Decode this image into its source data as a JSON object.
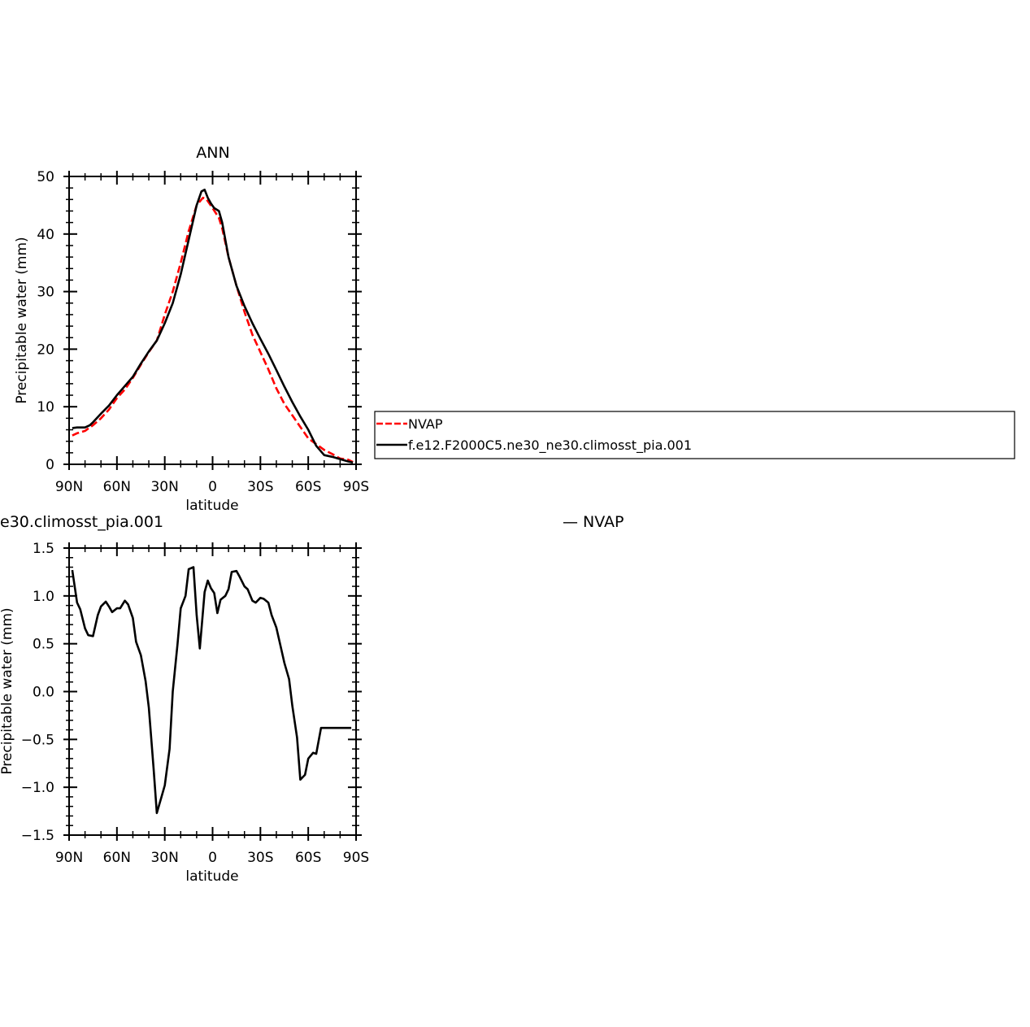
{
  "chart_data": [
    {
      "type": "line",
      "title": "ANN",
      "xlabel": "latitude",
      "ylabel": "Precipitable water (mm)",
      "xlim": [
        90,
        -90
      ],
      "ylim": [
        0,
        50
      ],
      "xticks": [
        90,
        60,
        30,
        0,
        -30,
        -60,
        -90
      ],
      "xticklabels": [
        "90N",
        "60N",
        "30N",
        "0",
        "30S",
        "60S",
        "90S"
      ],
      "yticks": [
        0,
        10,
        20,
        30,
        40,
        50
      ],
      "yticklabels": [
        "0",
        "10",
        "20",
        "30",
        "40",
        "50"
      ],
      "grid": false,
      "legend": {
        "placement": "right",
        "entries": [
          "NVAP",
          "f.e12.F2000C5.ne30_ne30.climosst_pia.001"
        ]
      },
      "series": [
        {
          "name": "NVAP",
          "color": "#ff0000",
          "dash": "dashed",
          "x": [
            88,
            85,
            80,
            75,
            70,
            65,
            60,
            55,
            50,
            45,
            40,
            35,
            30,
            25,
            20,
            15,
            10,
            6,
            4,
            2,
            0,
            -4,
            -6,
            -10,
            -15,
            -20,
            -25,
            -30,
            -35,
            -40,
            -45,
            -50,
            -55,
            -60,
            -65,
            -70,
            -75,
            -80,
            -85,
            -88
          ],
          "y": [
            5.0,
            5.4,
            5.8,
            6.8,
            8.0,
            9.5,
            11.5,
            13.0,
            15.0,
            17.3,
            19.5,
            21.5,
            26.0,
            30.0,
            35.0,
            40.5,
            45.0,
            46.3,
            46.1,
            45.3,
            44.5,
            42.8,
            41.0,
            36.0,
            31.0,
            26.5,
            22.5,
            19.5,
            16.5,
            13.2,
            10.5,
            8.5,
            6.5,
            4.5,
            3.5,
            2.5,
            1.8,
            1.0,
            0.8,
            0.4
          ]
        },
        {
          "name": "f.e12.F2000C5.ne30_ne30.climosst_pia.001",
          "color": "#000000",
          "dash": "solid",
          "x": [
            88,
            85,
            80,
            77,
            75,
            70,
            65,
            60,
            55,
            50,
            45,
            40,
            35,
            30,
            25,
            20,
            15,
            10,
            7,
            5,
            3,
            1,
            -1,
            -4,
            -6,
            -10,
            -15,
            -20,
            -25,
            -30,
            -35,
            -40,
            -45,
            -50,
            -55,
            -60,
            -65,
            -70,
            -75,
            -80,
            -85,
            -88
          ],
          "y": [
            6.3,
            6.4,
            6.4,
            6.8,
            7.3,
            8.8,
            10.2,
            12.0,
            13.6,
            15.2,
            17.5,
            19.6,
            21.5,
            24.5,
            28.0,
            33.0,
            39.0,
            45.0,
            47.4,
            47.7,
            46.3,
            45.3,
            44.5,
            44.0,
            42.0,
            36.0,
            31.0,
            27.5,
            24.5,
            21.8,
            19.2,
            16.4,
            13.5,
            10.8,
            8.3,
            6.0,
            3.2,
            1.6,
            1.3,
            0.9,
            0.5,
            0.3
          ]
        }
      ]
    },
    {
      "type": "line",
      "title": "e30.climosst_pia.001",
      "right_title": "— NVAP",
      "xlabel": "latitude",
      "ylabel": "Precipitable water (mm)",
      "xlim": [
        90,
        -90
      ],
      "ylim": [
        -1.5,
        1.5
      ],
      "xticks": [
        90,
        60,
        30,
        0,
        -30,
        -60,
        -90
      ],
      "xticklabels": [
        "90N",
        "60N",
        "30N",
        "0",
        "30S",
        "60S",
        "90S"
      ],
      "yticks": [
        -1.5,
        -1.0,
        -0.5,
        0.0,
        0.5,
        1.0,
        1.5
      ],
      "yticklabels": [
        "−1.5",
        "−1.0",
        "−0.5",
        "0.0",
        "0.5",
        "1.0",
        "1.5"
      ],
      "grid": false,
      "series": [
        {
          "color": "#000000",
          "dash": "solid",
          "x": [
            88,
            85,
            83,
            80,
            78,
            75,
            72,
            70,
            67,
            65,
            63,
            60,
            58,
            55,
            53,
            50,
            48,
            45,
            42,
            40,
            37,
            35,
            32,
            30,
            27,
            25,
            22,
            20,
            17,
            15,
            12,
            10,
            8,
            5,
            3,
            1,
            -1,
            -3,
            -5,
            -8,
            -10,
            -12,
            -15,
            -17,
            -20,
            -22,
            -25,
            -27,
            -30,
            -32,
            -35,
            -37,
            -40,
            -43,
            -45,
            -48,
            -50,
            -53,
            -55,
            -58,
            -60,
            -63,
            -65,
            -68,
            -70,
            -72,
            -75,
            -77,
            -80,
            -82,
            -85,
            -87
          ],
          "y": [
            1.27,
            0.93,
            0.86,
            0.66,
            0.59,
            0.58,
            0.8,
            0.89,
            0.94,
            0.89,
            0.83,
            0.87,
            0.87,
            0.95,
            0.91,
            0.77,
            0.52,
            0.38,
            0.11,
            -0.17,
            -0.8,
            -1.27,
            -1.1,
            -0.98,
            -0.6,
            0.0,
            0.5,
            0.87,
            1.0,
            1.28,
            1.3,
            0.8,
            0.45,
            1.04,
            1.16,
            1.08,
            1.03,
            0.82,
            0.96,
            1.0,
            1.07,
            1.25,
            1.26,
            1.2,
            1.1,
            1.07,
            0.95,
            0.93,
            0.98,
            0.97,
            0.93,
            0.8,
            0.67,
            0.45,
            0.3,
            0.13,
            -0.15,
            -0.48,
            -0.92,
            -0.87,
            -0.7,
            -0.64,
            -0.65,
            -0.38,
            -0.38,
            -0.38,
            -0.38,
            -0.38,
            -0.38,
            -0.38,
            -0.38,
            -0.38
          ]
        }
      ]
    }
  ]
}
